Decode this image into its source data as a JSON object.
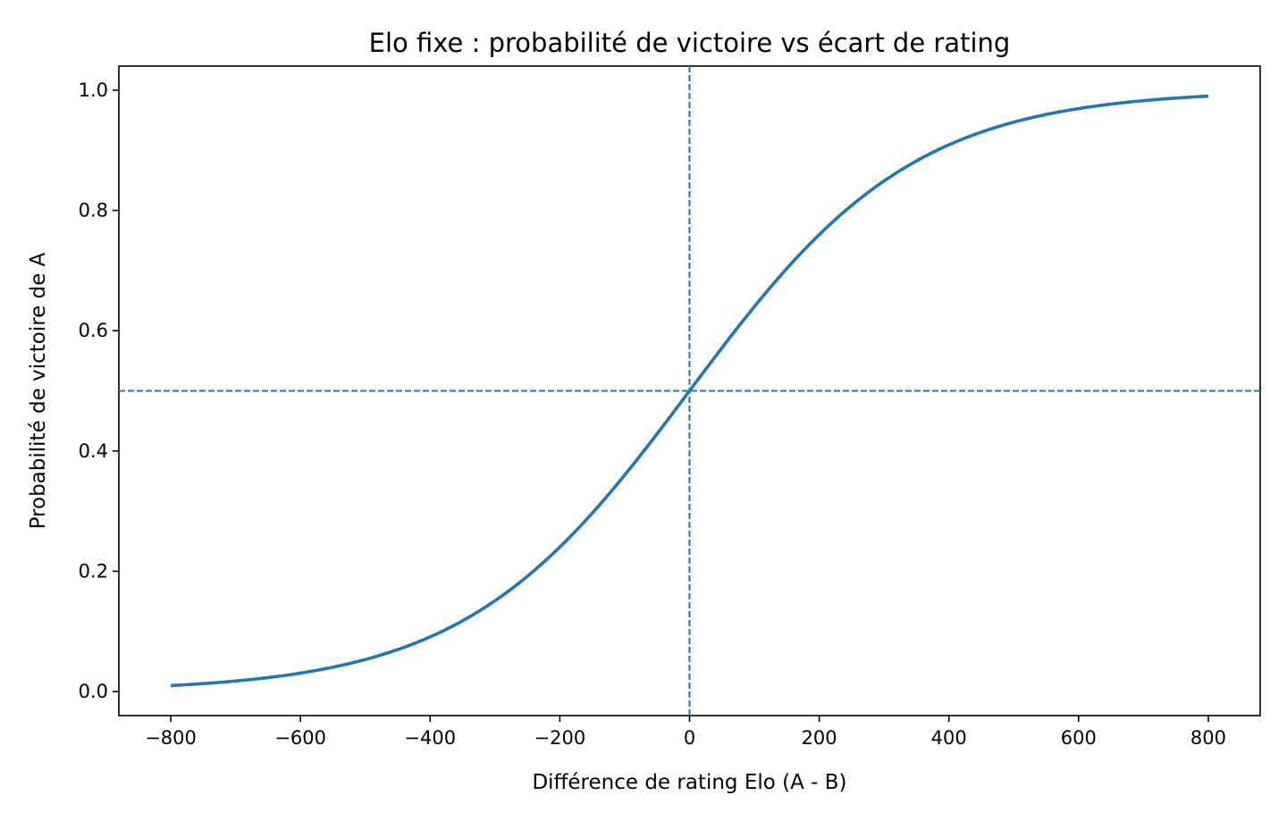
{
  "chart_data": {
    "type": "line",
    "title": "Elo fixe : probabilité de victoire vs écart de rating",
    "xlabel": "Différence de rating Elo (A - B)",
    "ylabel": "Probabilité de victoire de A",
    "xlim": [
      -880,
      880
    ],
    "ylim": [
      -0.04,
      1.04
    ],
    "x_ticks": [
      -800,
      -600,
      -400,
      -200,
      0,
      200,
      400,
      600,
      800
    ],
    "x_tick_labels": [
      "−800",
      "−600",
      "−400",
      "−200",
      "0",
      "200",
      "400",
      "600",
      "800"
    ],
    "y_ticks": [
      0.0,
      0.2,
      0.4,
      0.6,
      0.8,
      1.0
    ],
    "y_tick_labels": [
      "0.0",
      "0.2",
      "0.4",
      "0.6",
      "0.8",
      "1.0"
    ],
    "grid": false,
    "legend": "none",
    "series": [
      {
        "color": "#1f77b4",
        "x": [
          -800,
          -700,
          -600,
          -500,
          -400,
          -300,
          -200,
          -100,
          0,
          100,
          200,
          300,
          400,
          500,
          600,
          700,
          800
        ],
        "y": [
          0.0099,
          0.0175,
          0.0307,
          0.0532,
          0.0909,
          0.151,
          0.2403,
          0.3599,
          0.5,
          0.6401,
          0.7597,
          0.849,
          0.9091,
          0.9468,
          0.9693,
          0.9825,
          0.9901
        ]
      }
    ],
    "reference_lines": [
      {
        "orientation": "vertical",
        "value": 0,
        "style": "dashed",
        "color": "#1f77b4"
      },
      {
        "orientation": "horizontal",
        "value": 0.5,
        "style": "dashed",
        "color": "#1f77b4"
      }
    ]
  }
}
